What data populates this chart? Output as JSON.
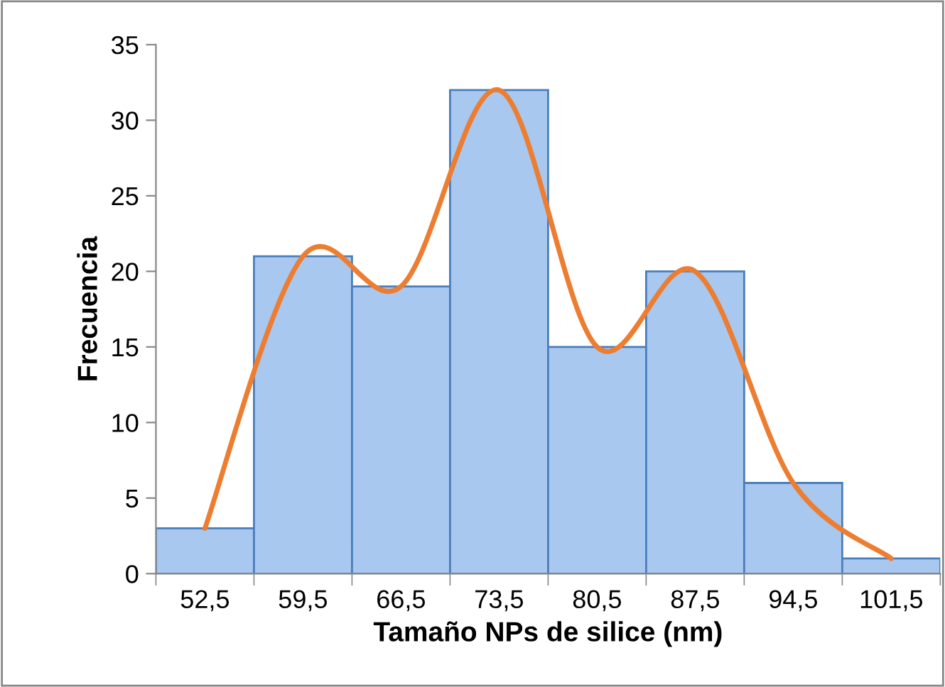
{
  "chart_data": {
    "type": "bar",
    "xlabel": "Tamaño NPs de silice (nm)",
    "ylabel": "Frecuencia",
    "categories": [
      "52,5",
      "59,5",
      "66,5",
      "73,5",
      "80,5",
      "87,5",
      "94,5",
      "101,5"
    ],
    "series": [
      {
        "color": "#a8c8ef",
        "values": [
          3,
          21,
          19,
          32,
          15,
          20,
          6,
          1
        ]
      },
      {
        "type": "line",
        "color": "#ed7d31",
        "values": [
          3,
          21,
          19,
          32,
          15,
          20,
          6,
          1
        ]
      }
    ],
    "ylim": [
      0,
      35
    ],
    "yticks": [
      0,
      5,
      10,
      15,
      20,
      25,
      30,
      35
    ],
    "grid": false
  }
}
